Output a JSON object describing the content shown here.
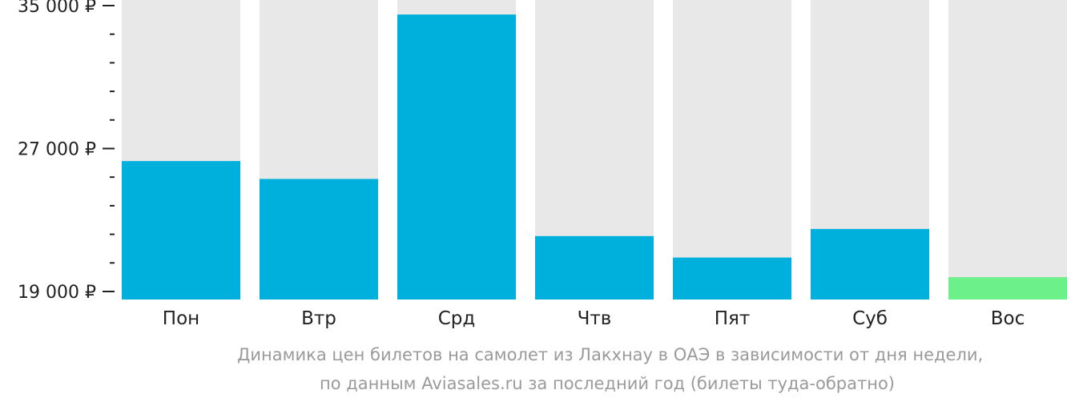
{
  "chart_data": {
    "type": "bar",
    "categories": [
      "Пон",
      "Втр",
      "Срд",
      "Чтв",
      "Пят",
      "Суб",
      "Вос"
    ],
    "values": [
      26300,
      25300,
      34500,
      22100,
      20900,
      22500,
      19800
    ],
    "ylim": [
      19000,
      35000
    ],
    "yticks": [
      {
        "value": 35000,
        "label": "35 000 ₽"
      },
      {
        "value": 27000,
        "label": "27 000 ₽"
      },
      {
        "value": 19000,
        "label": "19 000 ₽"
      }
    ],
    "minor_step": 1600,
    "bar_color": "#00b0dc",
    "highlight_color": "#6cf08a",
    "highlight_index": 6,
    "background_bar_color": "#e8e8e8",
    "grid": false
  },
  "caption": {
    "line1": "Динамика цен билетов на самолет из Лакхнау в ОАЭ в зависимости от дня недели,",
    "line2": "по данным Aviasales.ru за последний год (билеты туда-обратно)"
  }
}
